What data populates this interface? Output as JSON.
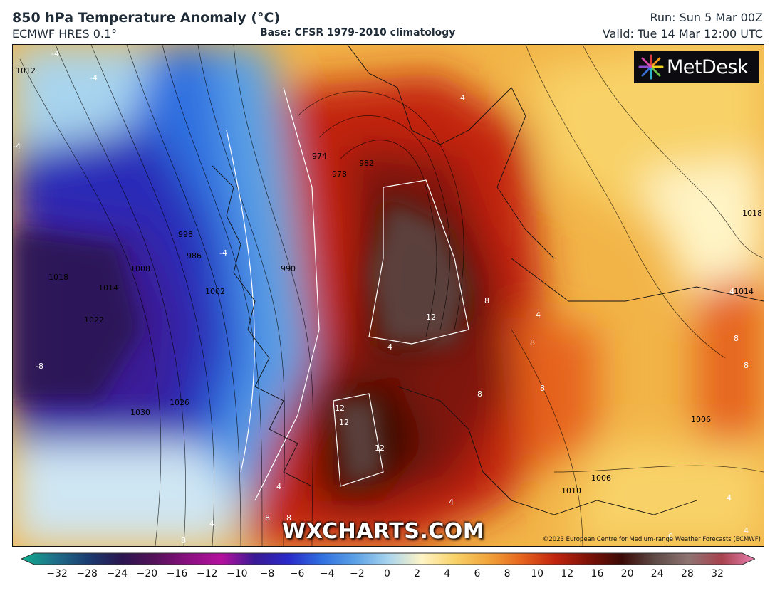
{
  "header": {
    "title": "850 hPa Temperature Anomaly (°C)",
    "model": "ECMWF HRES 0.1°",
    "base": "Base: CFSR 1979-2010 climatology",
    "run": "Run: Sun 5 Mar 00Z",
    "valid": "Valid: Tue 14 Mar 12:00 UTC"
  },
  "logo": {
    "text": "MetDesk"
  },
  "watermark": "WXCHARTS.COM",
  "copyright": "©2023 European Centre for Medium-range Weather Forecasts (ECMWF)",
  "isobar_labels": [
    "1012",
    "1018",
    "1014",
    "1008",
    "1002",
    "1022",
    "1026",
    "1030",
    "998",
    "986",
    "990",
    "974",
    "978",
    "982",
    "1018",
    "1014",
    "1006",
    "1006",
    "1010"
  ],
  "anomaly_labels": [
    "-4",
    "-4",
    "-4",
    "-8",
    "-4",
    "4",
    "12",
    "4",
    "8",
    "4",
    "8",
    "8",
    "8",
    "8",
    "8",
    "12",
    "12",
    "12",
    "4",
    "4",
    "8",
    "8",
    "4",
    "4",
    "8",
    "4",
    "0",
    "4"
  ],
  "colorbar": {
    "ticks": [
      "−32",
      "−28",
      "−24",
      "−20",
      "−16",
      "−12",
      "−10",
      "−8",
      "−6",
      "−4",
      "−2",
      "0",
      "2",
      "4",
      "6",
      "8",
      "10",
      "12",
      "16",
      "20",
      "24",
      "28",
      "32"
    ],
    "colors": [
      "#0fae8c",
      "#1f6f8a",
      "#1a3c70",
      "#2a1650",
      "#55125a",
      "#8a0f80",
      "#b5109e",
      "#3a1a95",
      "#2929c9",
      "#2f6fe0",
      "#5aa0e6",
      "#a8d4ee",
      "#fff4c6",
      "#f8d268",
      "#f1a43a",
      "#e6641c",
      "#c2240e",
      "#7e1208",
      "#3c0a06",
      "#5e4a46",
      "#8e7472",
      "#a8424e",
      "#e87fb0"
    ]
  }
}
